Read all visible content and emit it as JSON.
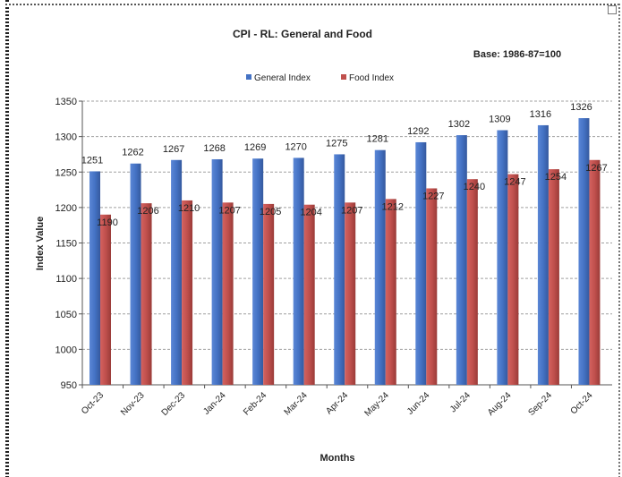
{
  "chart_data": {
    "type": "bar",
    "title": "CPI - RL: General and Food",
    "subtitle": "Base: 1986-87=100",
    "xlabel": "Months",
    "ylabel": "Index Value",
    "ylim": [
      950,
      1350
    ],
    "yticks": [
      950,
      1000,
      1050,
      1100,
      1150,
      1200,
      1250,
      1300,
      1350
    ],
    "grid": true,
    "legend": "top-center",
    "categories": [
      "Oct-23",
      "Nov-23",
      "Dec-23",
      "Jan-24",
      "Feb-24",
      "Mar-24",
      "Apr-24",
      "May-24",
      "Jun-24",
      "Jul-24",
      "Aug-24",
      "Sep-24",
      "Oct-24"
    ],
    "series": [
      {
        "name": "General Index",
        "color": "#4472C4",
        "values": [
          1251,
          1262,
          1267,
          1268,
          1269,
          1270,
          1275,
          1281,
          1292,
          1302,
          1309,
          1316,
          1326
        ]
      },
      {
        "name": "Food Index",
        "color": "#C0504D",
        "values": [
          1190,
          1206,
          1210,
          1207,
          1205,
          1204,
          1207,
          1212,
          1227,
          1240,
          1247,
          1254,
          1267
        ]
      }
    ]
  }
}
